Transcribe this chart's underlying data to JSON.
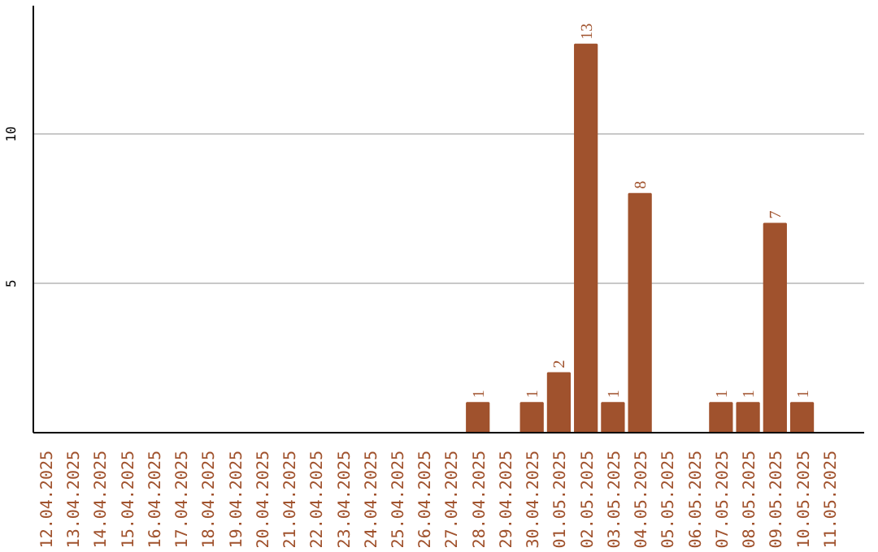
{
  "chart_data": {
    "type": "bar",
    "categories": [
      "12.04.2025",
      "13.04.2025",
      "14.04.2025",
      "15.04.2025",
      "16.04.2025",
      "17.04.2025",
      "18.04.2025",
      "19.04.2025",
      "20.04.2025",
      "21.04.2025",
      "22.04.2025",
      "23.04.2025",
      "24.04.2025",
      "25.04.2025",
      "26.04.2025",
      "27.04.2025",
      "28.04.2025",
      "29.04.2025",
      "30.04.2025",
      "01.05.2025",
      "02.05.2025",
      "03.05.2025",
      "04.05.2025",
      "05.05.2025",
      "06.05.2025",
      "07.05.2025",
      "08.05.2025",
      "09.05.2025",
      "10.05.2025",
      "11.05.2025"
    ],
    "values": [
      null,
      null,
      null,
      null,
      null,
      null,
      null,
      null,
      null,
      null,
      null,
      null,
      null,
      null,
      null,
      null,
      1,
      null,
      1,
      2,
      13,
      1,
      8,
      null,
      null,
      1,
      1,
      7,
      1,
      null
    ],
    "color": "#a0522d",
    "ylim": [
      0,
      14.3
    ],
    "yticks": [
      5,
      10
    ],
    "grid": "y",
    "data_labels": true
  }
}
